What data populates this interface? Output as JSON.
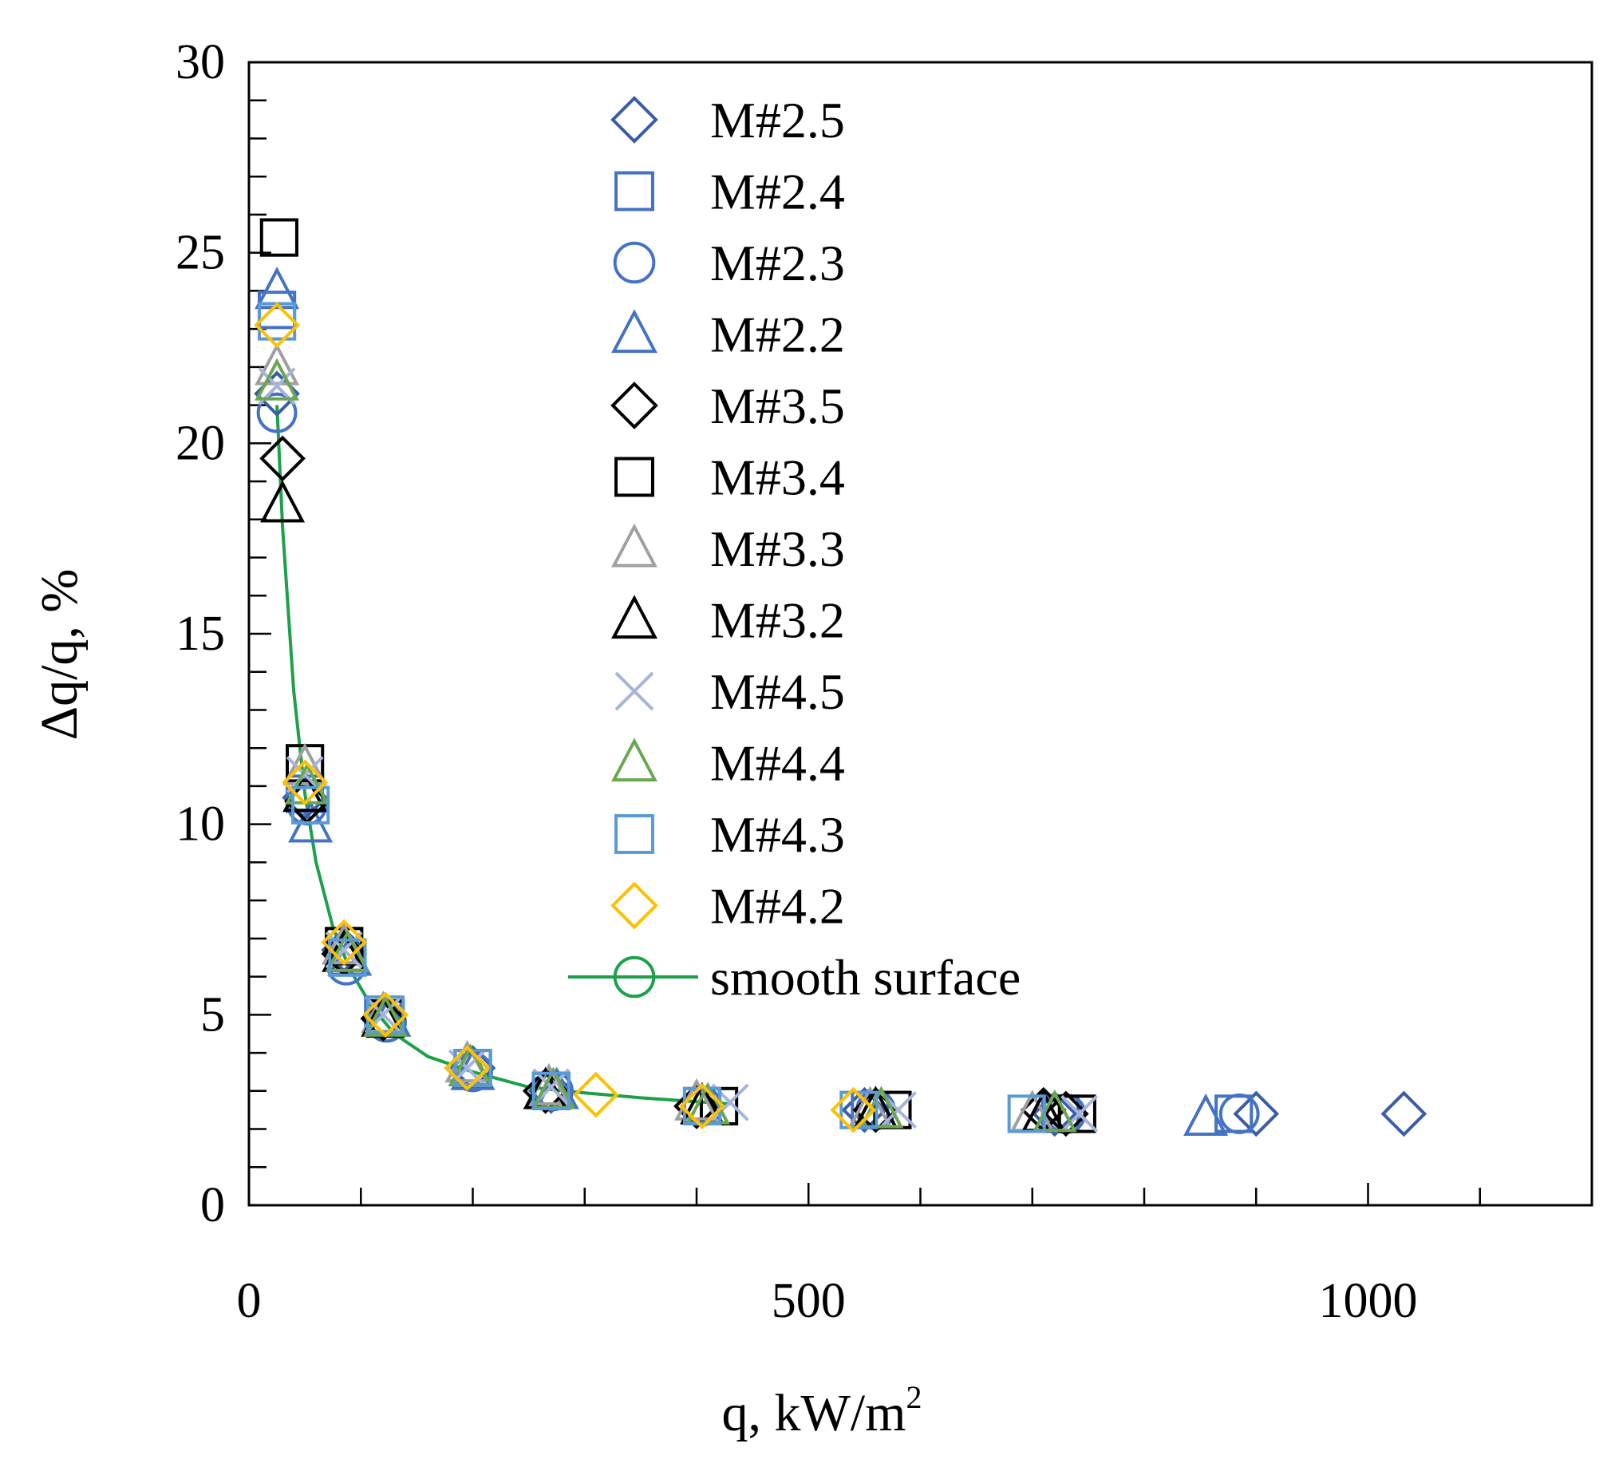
{
  "chart_data": {
    "type": "scatter",
    "xlabel": "q, kW/m",
    "xlabel_sup": "2",
    "ylabel": "Δq/q, %",
    "xlim": [
      0,
      1200
    ],
    "ylim": [
      0,
      30
    ],
    "x_major_ticks": [
      0,
      500,
      1000
    ],
    "x_tick_labels": [
      "0",
      "500",
      "1000"
    ],
    "x_minor_step": 100,
    "y_major_ticks": [
      0,
      5,
      10,
      15,
      20,
      25,
      30
    ],
    "y_tick_labels": [
      "0",
      "5",
      "10",
      "15",
      "20",
      "25",
      "30"
    ],
    "y_minor_step": 1,
    "grid": false,
    "legend_position": "top-center",
    "series": [
      {
        "name": "M#2.5",
        "marker": "diamond",
        "color": "#3a5ca8",
        "x": [
          25,
          50,
          85,
          120,
          200,
          270,
          400,
          550,
          720,
          900,
          1032
        ],
        "y": [
          21.3,
          10.7,
          6.7,
          4.9,
          3.6,
          3.0,
          2.6,
          2.5,
          2.4,
          2.4,
          2.4
        ]
      },
      {
        "name": "M#2.4",
        "marker": "square",
        "color": "#4472c4",
        "x": [
          25,
          50,
          85,
          120,
          200,
          270,
          405,
          555,
          725,
          880
        ],
        "y": [
          23.5,
          10.8,
          6.8,
          5.0,
          3.6,
          3.0,
          2.6,
          2.5,
          2.4,
          2.4
        ]
      },
      {
        "name": "M#2.3",
        "marker": "circle",
        "color": "#4472c4",
        "x": [
          25,
          52,
          87,
          123,
          200,
          272,
          405,
          560,
          730,
          885
        ],
        "y": [
          20.8,
          10.5,
          6.3,
          4.8,
          3.5,
          3.0,
          2.6,
          2.5,
          2.4,
          2.4
        ]
      },
      {
        "name": "M#2.2",
        "marker": "triangle",
        "color": "#4472c4",
        "x": [
          25,
          55,
          90,
          125,
          200,
          275,
          410,
          560,
          720,
          855
        ],
        "y": [
          24.0,
          10.0,
          6.5,
          4.9,
          3.5,
          3.0,
          2.6,
          2.5,
          2.4,
          2.3
        ]
      },
      {
        "name": "M#3.5",
        "marker": "diamond",
        "color": "#000000",
        "x": [
          30,
          52,
          85,
          120,
          195,
          265,
          400,
          560,
          710,
          730
        ],
        "y": [
          19.6,
          10.6,
          6.6,
          4.9,
          3.6,
          3.0,
          2.6,
          2.5,
          2.5,
          2.4
        ]
      },
      {
        "name": "M#3.4",
        "marker": "square",
        "color": "#000000",
        "x": [
          27,
          50,
          85,
          122,
          200,
          270,
          420,
          575,
          740
        ],
        "y": [
          25.4,
          11.6,
          6.8,
          4.9,
          3.6,
          3.0,
          2.6,
          2.5,
          2.4
        ]
      },
      {
        "name": "M#3.3",
        "marker": "triangle",
        "color": "#a0a0a0",
        "x": [
          25,
          50,
          85,
          120,
          195,
          268,
          400,
          555,
          700
        ],
        "y": [
          22.0,
          11.5,
          6.8,
          5.0,
          3.7,
          3.1,
          2.7,
          2.5,
          2.4
        ]
      },
      {
        "name": "M#3.2",
        "marker": "triangle",
        "color": "#000000",
        "x": [
          30,
          50,
          85,
          120,
          198,
          265,
          405,
          560,
          710
        ],
        "y": [
          18.4,
          10.8,
          6.6,
          4.9,
          3.6,
          3.0,
          2.6,
          2.5,
          2.4
        ]
      },
      {
        "name": "M#4.5",
        "marker": "x",
        "color": "#a6b4dc",
        "x": [
          25,
          50,
          85,
          120,
          195,
          270,
          430,
          580,
          742
        ],
        "y": [
          21.5,
          11.3,
          6.7,
          5.0,
          3.6,
          3.1,
          2.7,
          2.5,
          2.4
        ]
      },
      {
        "name": "M#4.4",
        "marker": "triangle",
        "color": "#6aa84f",
        "x": [
          25,
          52,
          88,
          122,
          198,
          272,
          410,
          565,
          720
        ],
        "y": [
          21.6,
          11.0,
          6.6,
          4.9,
          3.6,
          3.0,
          2.6,
          2.5,
          2.4
        ]
      },
      {
        "name": "M#4.3",
        "marker": "square",
        "color": "#5b9bd5",
        "x": [
          25,
          55,
          88,
          122,
          200,
          270,
          405,
          545,
          695
        ],
        "y": [
          23.2,
          10.5,
          6.5,
          5.0,
          3.6,
          3.0,
          2.6,
          2.5,
          2.4
        ]
      },
      {
        "name": "M#4.2",
        "marker": "diamond",
        "color": "#ffc000",
        "x": [
          25,
          50,
          85,
          122,
          195,
          310,
          405,
          540
        ],
        "y": [
          23.1,
          11.1,
          6.9,
          5.0,
          3.6,
          2.9,
          2.6,
          2.5
        ]
      },
      {
        "name": "smooth surface",
        "marker": "circle",
        "color": "#1ca14a",
        "line": true,
        "x": [
          25,
          30,
          40,
          50,
          60,
          75,
          90,
          110,
          130,
          160,
          200,
          250,
          300,
          350,
          400,
          430
        ],
        "y": [
          21.0,
          17.8,
          13.5,
          10.8,
          9.0,
          7.3,
          6.2,
          5.2,
          4.5,
          3.9,
          3.5,
          3.1,
          2.95,
          2.82,
          2.72,
          2.66
        ]
      }
    ]
  }
}
